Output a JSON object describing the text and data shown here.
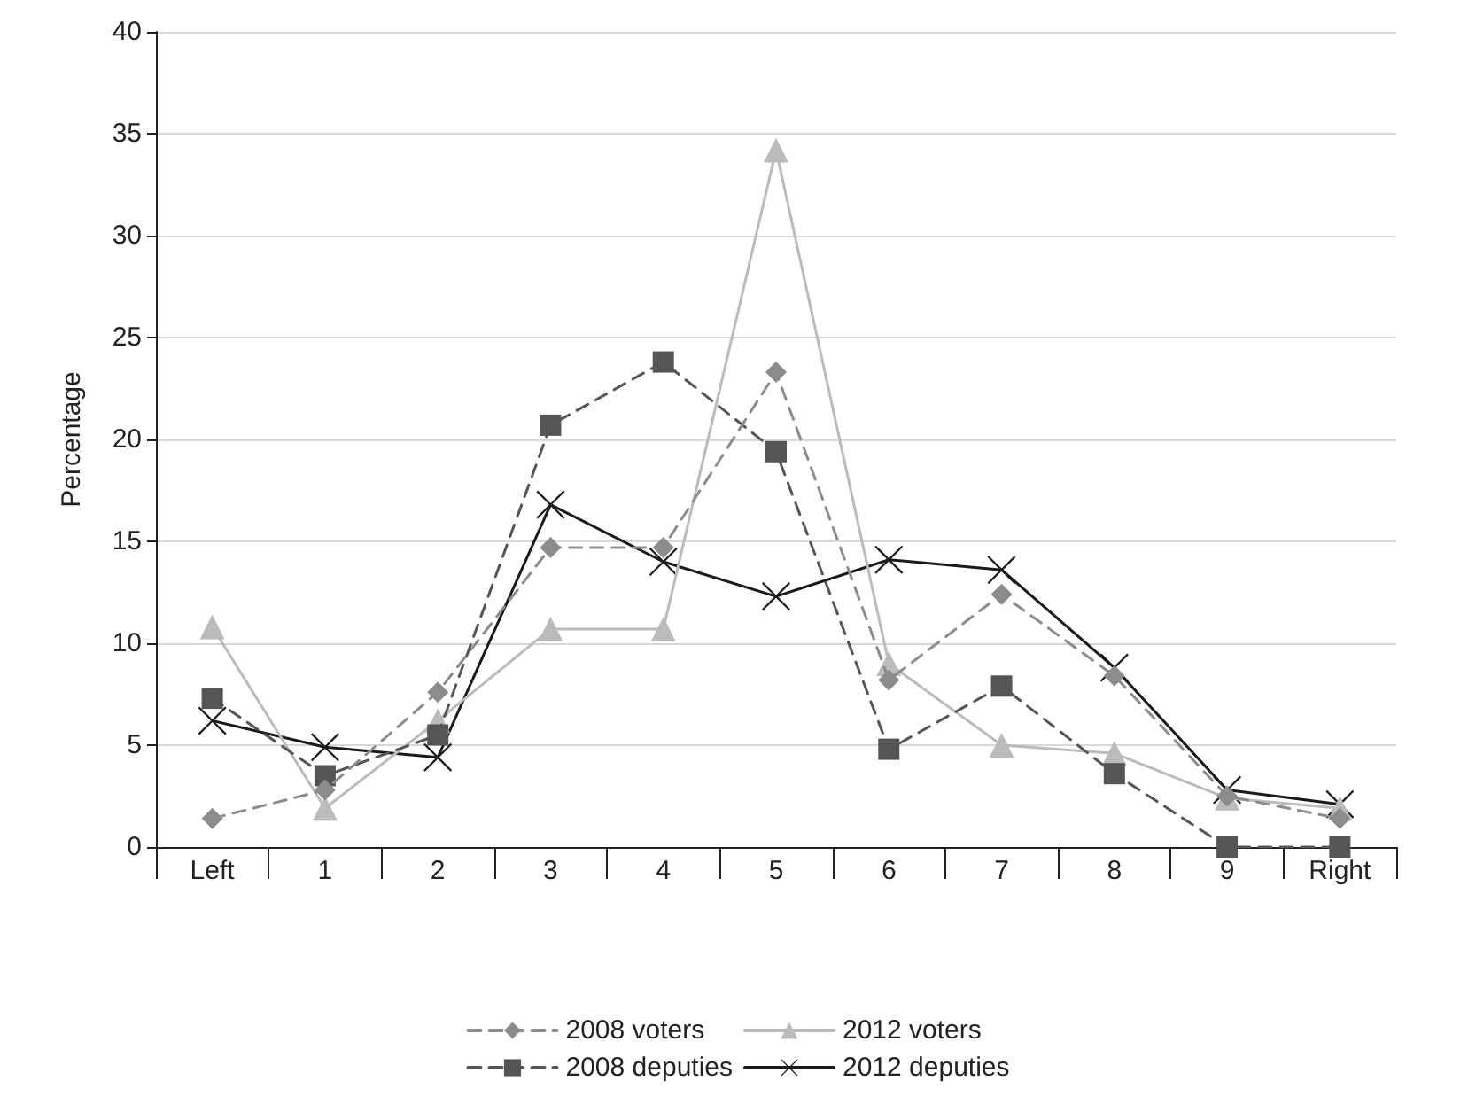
{
  "chart_data": {
    "type": "line",
    "ylabel": "Percentage",
    "categories": [
      "Left",
      "1",
      "2",
      "3",
      "4",
      "5",
      "6",
      "7",
      "8",
      "9",
      "Right"
    ],
    "ylim": [
      0,
      40
    ],
    "yticks": [
      0,
      5,
      10,
      15,
      20,
      25,
      30,
      35,
      40
    ],
    "grid": "y",
    "legend": "bottom",
    "series": [
      {
        "name": "2008 voters",
        "color": "#8c8c8c",
        "marker": "diamond",
        "line_style": "dashed",
        "values": [
          1.4,
          2.8,
          7.6,
          14.7,
          14.7,
          23.3,
          8.2,
          12.4,
          8.4,
          2.5,
          1.4
        ]
      },
      {
        "name": "2008 deputies",
        "color": "#555555",
        "marker": "square",
        "line_style": "dashed",
        "values": [
          7.3,
          3.5,
          5.5,
          20.7,
          23.8,
          19.4,
          4.8,
          7.9,
          3.6,
          0,
          0
        ]
      },
      {
        "name": "2012 voters",
        "color": "#bbbbbb",
        "marker": "triangle",
        "line_style": "solid",
        "values": [
          10.8,
          1.9,
          6.2,
          10.7,
          10.7,
          34.2,
          9.0,
          5.0,
          4.6,
          2.4,
          1.9
        ]
      },
      {
        "name": "2012 deputies",
        "color": "#1a1a1a",
        "marker": "cross",
        "line_style": "solid",
        "values": [
          6.2,
          4.9,
          4.4,
          16.8,
          14.0,
          12.3,
          14.1,
          13.6,
          8.8,
          2.8,
          2.1
        ]
      }
    ]
  }
}
